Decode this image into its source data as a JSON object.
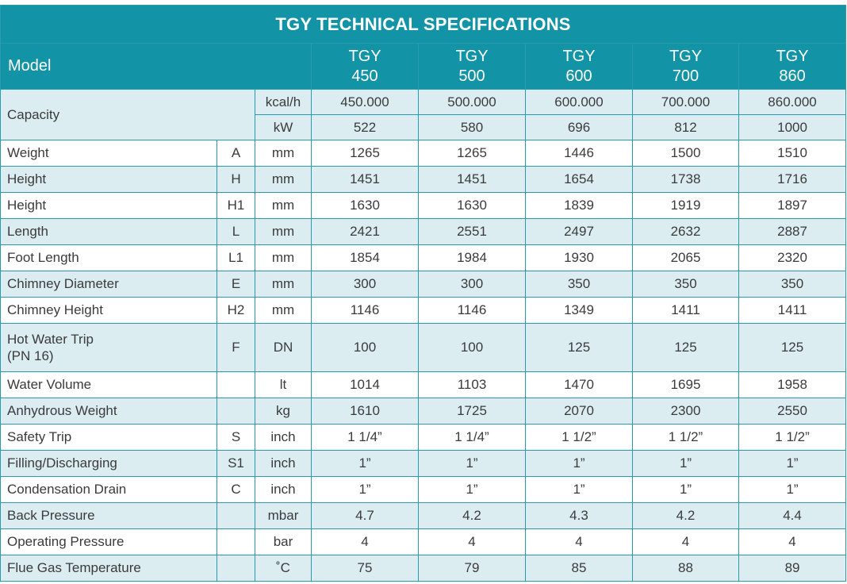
{
  "title": "TGY TECHNICAL SPECIFICATIONS",
  "header": {
    "model_label": "Model",
    "models": [
      {
        "line1": "TGY",
        "line2": "450"
      },
      {
        "line1": "TGY",
        "line2": "500"
      },
      {
        "line1": "TGY",
        "line2": "600"
      },
      {
        "line1": "TGY",
        "line2": "700"
      },
      {
        "line1": "TGY",
        "line2": "860"
      }
    ]
  },
  "capacity": {
    "label": "Capacity",
    "rows": [
      {
        "unit": "kcal/h",
        "values": [
          "450.000",
          "500.000",
          "600.000",
          "700.000",
          "860.000"
        ]
      },
      {
        "unit": "kW",
        "values": [
          "522",
          "580",
          "696",
          "812",
          "1000"
        ]
      }
    ]
  },
  "rows": [
    {
      "name": "Weight",
      "code": "A",
      "unit": "mm",
      "values": [
        "1265",
        "1265",
        "1446",
        "1500",
        "1510"
      ]
    },
    {
      "name": "Height",
      "code": "H",
      "unit": "mm",
      "values": [
        "1451",
        "1451",
        "1654",
        "1738",
        "1716"
      ]
    },
    {
      "name": "Height",
      "code": "H1",
      "unit": "mm",
      "values": [
        "1630",
        "1630",
        "1839",
        "1919",
        "1897"
      ]
    },
    {
      "name": "Length",
      "code": "L",
      "unit": "mm",
      "values": [
        "2421",
        "2551",
        "2497",
        "2632",
        "2887"
      ]
    },
    {
      "name": "Foot Length",
      "code": "L1",
      "unit": "mm",
      "values": [
        "1854",
        "1984",
        "1930",
        "2065",
        "2320"
      ]
    },
    {
      "name": "Chimney Diameter",
      "code": "E",
      "unit": "mm",
      "values": [
        "300",
        "300",
        "350",
        "350",
        "350"
      ]
    },
    {
      "name": "Chimney Height",
      "code": "H2",
      "unit": "mm",
      "values": [
        "1146",
        "1146",
        "1349",
        "1411",
        "1411"
      ]
    },
    {
      "name_line1": "Hot Water Trip",
      "name_line2": "(PN 16)",
      "code": "F",
      "unit": "DN",
      "values": [
        "100",
        "100",
        "125",
        "125",
        "125"
      ]
    },
    {
      "name": "Water Volume",
      "code": "",
      "unit": "lt",
      "values": [
        "1014",
        "1103",
        "1470",
        "1695",
        "1958"
      ]
    },
    {
      "name": "Anhydrous Weight",
      "code": "",
      "unit": "kg",
      "values": [
        "1610",
        "1725",
        "2070",
        "2300",
        "2550"
      ]
    },
    {
      "name": "Safety Trip",
      "code": "S",
      "unit": "inch",
      "values": [
        "1 1/4”",
        "1 1/4”",
        "1 1/2”",
        "1 1/2”",
        "1 1/2”"
      ]
    },
    {
      "name": "Filling/Discharging",
      "code": "S1",
      "unit": "inch",
      "values": [
        "1”",
        "1”",
        "1”",
        "1”",
        "1”"
      ]
    },
    {
      "name": "Condensation Drain",
      "code": "C",
      "unit": "inch",
      "values": [
        "1”",
        "1”",
        "1”",
        "1”",
        "1”"
      ]
    },
    {
      "name": "Back Pressure",
      "code": "",
      "unit": "mbar",
      "values": [
        "4.7",
        "4.2",
        "4.3",
        "4.2",
        "4.4"
      ]
    },
    {
      "name": "Operating Pressure",
      "code": "",
      "unit": "bar",
      "values": [
        "4",
        "4",
        "4",
        "4",
        "4"
      ]
    },
    {
      "name": "Flue Gas Temperature",
      "code": "",
      "unit": "˚C",
      "values": [
        "75",
        "79",
        "85",
        "88",
        "89"
      ]
    }
  ],
  "colors": {
    "header_bg": "#1393a6",
    "alt_row_bg": "#dcedf2",
    "border": "#2a9bad",
    "text": "#3b3b3b"
  }
}
